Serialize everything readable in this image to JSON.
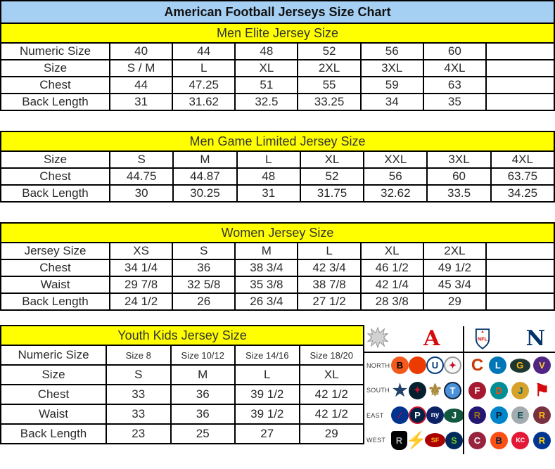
{
  "title": "American Football Jerseys Size Chart",
  "chart_data": [
    {
      "type": "table",
      "title": "Men Elite Jersey Size",
      "rows": [
        {
          "label": "Numeric Size",
          "values": [
            "40",
            "44",
            "48",
            "52",
            "56",
            "60",
            ""
          ]
        },
        {
          "label": "Size",
          "values": [
            "S / M",
            "L",
            "XL",
            "2XL",
            "3XL",
            "4XL",
            ""
          ]
        },
        {
          "label": "Chest",
          "values": [
            "44",
            "47.25",
            "51",
            "55",
            "59",
            "63",
            ""
          ]
        },
        {
          "label": "Back Length",
          "values": [
            "31",
            "31.62",
            "32.5",
            "33.25",
            "34",
            "35",
            ""
          ]
        }
      ]
    },
    {
      "type": "table",
      "title": "Men Game Limited Jersey Size",
      "rows": [
        {
          "label": "Size",
          "values": [
            "S",
            "M",
            "L",
            "XL",
            "XXL",
            "3XL",
            "4XL"
          ]
        },
        {
          "label": "Chest",
          "values": [
            "44.75",
            "44.87",
            "48",
            "52",
            "56",
            "60",
            "63.75"
          ]
        },
        {
          "label": "Back Length",
          "values": [
            "30",
            "30.25",
            "31",
            "31.75",
            "32.62",
            "33.5",
            "34.25"
          ]
        }
      ]
    },
    {
      "type": "table",
      "title": "Women Jersey Size",
      "rows": [
        {
          "label": "Jersey Size",
          "values": [
            "XS",
            "S",
            "M",
            "L",
            "XL",
            "2XL",
            ""
          ]
        },
        {
          "label": "Chest",
          "values": [
            "34 1/4",
            "36",
            "38 3/4",
            "42 3/4",
            "46 1/2",
            "49 1/2",
            ""
          ]
        },
        {
          "label": "Waist",
          "values": [
            "29 7/8",
            "32 5/8",
            "35 3/8",
            "38 7/8",
            "42 1/4",
            "45 3/4",
            ""
          ]
        },
        {
          "label": "Back Length",
          "values": [
            "24 1/2",
            "26",
            "26 3/4",
            "27 1/2",
            "28 3/8",
            "29",
            ""
          ]
        }
      ]
    },
    {
      "type": "table",
      "title": "Youth Kids Jersey Size",
      "rows": [
        {
          "label": "Numeric Size",
          "values": [
            "Size 8",
            "Size 10/12",
            "Size 14/16",
            "Size 18/20"
          ]
        },
        {
          "label": "Size",
          "values": [
            "S",
            "M",
            "L",
            "XL"
          ]
        },
        {
          "label": "Chest",
          "values": [
            "33",
            "36",
            "39 1/2",
            "42 1/2"
          ]
        },
        {
          "label": "Waist",
          "values": [
            "33",
            "36",
            "39 1/2",
            "42 1/2"
          ]
        },
        {
          "label": "Back Length",
          "values": [
            "23",
            "25",
            "27",
            "29"
          ]
        }
      ]
    }
  ],
  "logos": {
    "afc_letter": "A",
    "nfc_letter": "N",
    "nfl_label": "NFL",
    "divisions": [
      "NORTH",
      "SOUTH",
      "EAST",
      "WEST"
    ],
    "afc_teams": [
      [
        "bengals",
        "browns",
        "colts",
        "steelers"
      ],
      [
        "cowboys",
        "texans",
        "saints",
        "titans"
      ],
      [
        "bills",
        "patriots",
        "giants",
        "jets"
      ],
      [
        "raiders",
        "chargers",
        "49ers",
        "seahawks"
      ]
    ],
    "nfc_teams": [
      [
        "bears",
        "lions",
        "packers",
        "vikings"
      ],
      [
        "falcons",
        "dolphins",
        "jaguars",
        "buccaneers"
      ],
      [
        "ravens",
        "panthers",
        "eagles",
        "redskins"
      ],
      [
        "cardinals",
        "broncos",
        "chiefs",
        "rams"
      ]
    ],
    "team_styles": {
      "bengals": {
        "glyph": "B",
        "bg": "#f25a1e",
        "fg": "#000000",
        "shape": "circle"
      },
      "browns": {
        "glyph": "",
        "bg": "#eb3b00",
        "fg": "#ffffff",
        "shape": "circle"
      },
      "colts": {
        "glyph": "U",
        "bg": "#ffffff",
        "fg": "#00387d",
        "shape": "circle",
        "border": "#00387d"
      },
      "steelers": {
        "glyph": "✦",
        "bg": "#f7f7f7",
        "fg": "#c60c30",
        "shape": "circle",
        "border": "#9a9a9a"
      },
      "cowboys": {
        "glyph": "★",
        "bg": "",
        "fg": "#24416b",
        "shape": "plain"
      },
      "texans": {
        "glyph": "✦",
        "bg": "#03202f",
        "fg": "#c41230",
        "shape": "circle"
      },
      "saints": {
        "glyph": "⚜",
        "bg": "",
        "fg": "#a8893c",
        "shape": "plain"
      },
      "titans": {
        "glyph": "T",
        "bg": "#4b92db",
        "fg": "#ffffff",
        "shape": "circle",
        "border": "#0c2340"
      },
      "bills": {
        "glyph": "∕",
        "bg": "#00338d",
        "fg": "#c60c30",
        "shape": "circle"
      },
      "patriots": {
        "glyph": "P",
        "bg": "#002244",
        "fg": "#ffffff",
        "shape": "circle",
        "border": "#c8102e"
      },
      "giants": {
        "glyph": "ny",
        "bg": "#0b2265",
        "fg": "#ffffff",
        "shape": "circle",
        "fs": "10px"
      },
      "jets": {
        "glyph": "J",
        "bg": "#125740",
        "fg": "#ffffff",
        "shape": "oval"
      },
      "raiders": {
        "glyph": "R",
        "bg": "#000000",
        "fg": "#a5acaf",
        "shape": "shield"
      },
      "chargers": {
        "glyph": "⚡",
        "bg": "",
        "fg": "#ffc20e",
        "shape": "plain"
      },
      "49ers": {
        "glyph": "SF",
        "bg": "#aa0000",
        "fg": "#ffb612",
        "shape": "oval",
        "fs": "9px"
      },
      "seahawks": {
        "glyph": "S",
        "bg": "#002a5c",
        "fg": "#69be28",
        "shape": "circle"
      },
      "bears": {
        "glyph": "C",
        "bg": "",
        "fg": "#c83803",
        "shape": "plain"
      },
      "lions": {
        "glyph": "L",
        "bg": "#0076b6",
        "fg": "#ffffff",
        "shape": "circle"
      },
      "packers": {
        "glyph": "G",
        "bg": "#1e3730",
        "fg": "#ffb612",
        "shape": "oval"
      },
      "vikings": {
        "glyph": "V",
        "bg": "#4f2683",
        "fg": "#ffc62f",
        "shape": "circle"
      },
      "falcons": {
        "glyph": "F",
        "bg": "#a71930",
        "fg": "#ffffff",
        "shape": "circle"
      },
      "dolphins": {
        "glyph": "D",
        "bg": "#008e97",
        "fg": "#fc4c02",
        "shape": "circle"
      },
      "jaguars": {
        "glyph": "J",
        "bg": "#d7a22a",
        "fg": "#006778",
        "shape": "circle"
      },
      "buccaneers": {
        "glyph": "⚑",
        "bg": "",
        "fg": "#d50a0a",
        "shape": "plain"
      },
      "ravens": {
        "glyph": "R",
        "bg": "#241773",
        "fg": "#9e7c0c",
        "shape": "circle"
      },
      "panthers": {
        "glyph": "P",
        "bg": "#0085ca",
        "fg": "#101820",
        "shape": "circle"
      },
      "eagles": {
        "glyph": "E",
        "bg": "#a5acaf",
        "fg": "#004c54",
        "shape": "circle"
      },
      "redskins": {
        "glyph": "R",
        "bg": "#773141",
        "fg": "#ffb612",
        "shape": "circle"
      },
      "cardinals": {
        "glyph": "C",
        "bg": "#97233f",
        "fg": "#ffffff",
        "shape": "circle"
      },
      "broncos": {
        "glyph": "B",
        "bg": "#fb4f14",
        "fg": "#002244",
        "shape": "circle"
      },
      "chiefs": {
        "glyph": "KC",
        "bg": "#e31837",
        "fg": "#ffffff",
        "shape": "circle",
        "fs": "9px"
      },
      "rams": {
        "glyph": "R",
        "bg": "#003594",
        "fg": "#ffd100",
        "shape": "circle"
      }
    }
  },
  "colors": {
    "title_bg": "#a6d0f3",
    "section_bg": "#ffff00",
    "border": "#000000",
    "text": "#2a2a2a",
    "afc_red": "#d50a0a",
    "nfc_blue": "#013369"
  }
}
